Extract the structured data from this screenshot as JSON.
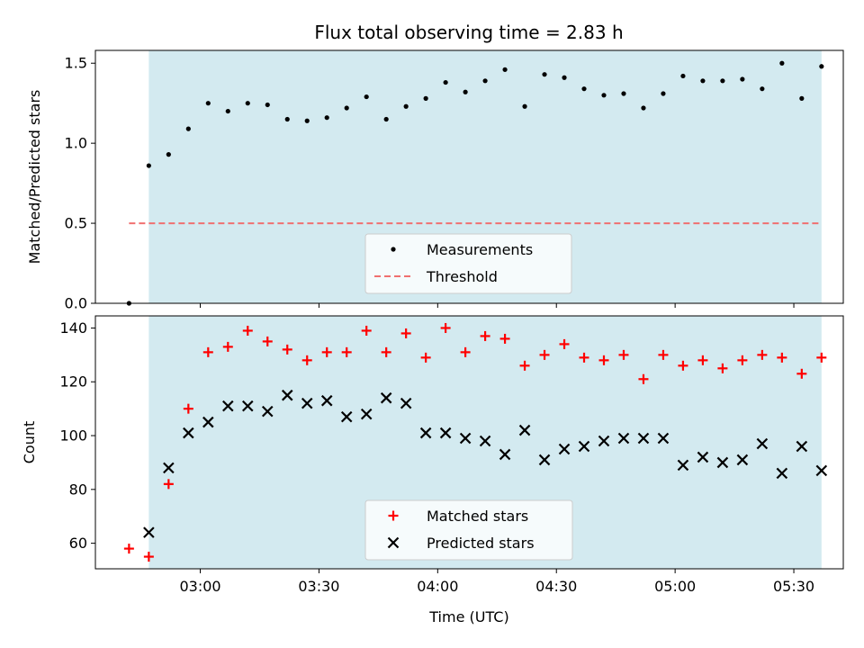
{
  "chart_data": {
    "title": "Flux total observing time = 2.83 h",
    "xlabel": "Time (UTC)",
    "x_ticks": [
      "03:00",
      "03:30",
      "04:00",
      "04:30",
      "05:00",
      "05:30"
    ],
    "x_tick_minutes": [
      180,
      210,
      240,
      270,
      300,
      330
    ],
    "observing_window": {
      "start": "02:47",
      "end": "05:37",
      "color": "#d3eaf0"
    },
    "panels": [
      {
        "type": "scatter",
        "ylabel": "Matched/Predicted stars",
        "ylim": [
          0,
          1.58
        ],
        "y_ticks": [
          0.0,
          0.5,
          1.0,
          1.5
        ],
        "y_tick_labels": [
          "0.0",
          "0.5",
          "1.0",
          "1.5"
        ],
        "legend": "lower center",
        "series": [
          {
            "name": "Measurements",
            "marker": "dot",
            "color": "#000000",
            "x": [
              "02:42",
              "02:47",
              "02:52",
              "02:57",
              "03:02",
              "03:07",
              "03:12",
              "03:17",
              "03:22",
              "03:27",
              "03:32",
              "03:37",
              "03:42",
              "03:47",
              "03:52",
              "03:57",
              "04:02",
              "04:07",
              "04:12",
              "04:17",
              "04:22",
              "04:27",
              "04:32",
              "04:37",
              "04:42",
              "04:47",
              "04:52",
              "04:57",
              "05:02",
              "05:07",
              "05:12",
              "05:17",
              "05:22",
              "05:27",
              "05:32",
              "05:37"
            ],
            "y": [
              0.0,
              0.86,
              0.93,
              1.09,
              1.25,
              1.2,
              1.25,
              1.24,
              1.15,
              1.14,
              1.16,
              1.22,
              1.29,
              1.15,
              1.23,
              1.28,
              1.38,
              1.32,
              1.39,
              1.46,
              1.23,
              1.43,
              1.41,
              1.34,
              1.3,
              1.31,
              1.22,
              1.31,
              1.42,
              1.39,
              1.39,
              1.4,
              1.34,
              1.5,
              1.28,
              1.48
            ]
          },
          {
            "name": "Threshold",
            "marker": "dashed-line",
            "color": "#f07070",
            "x": [
              "02:42",
              "05:37"
            ],
            "y": [
              0.5,
              0.5
            ]
          }
        ]
      },
      {
        "type": "scatter",
        "ylabel": "Count",
        "ylim": [
          50.5,
          144.5
        ],
        "y_ticks": [
          60,
          80,
          100,
          120,
          140
        ],
        "y_tick_labels": [
          "60",
          "80",
          "100",
          "120",
          "140"
        ],
        "legend": "lower center",
        "series": [
          {
            "name": "Matched stars",
            "marker": "plus",
            "color": "#ff0000",
            "x": [
              "02:42",
              "02:47",
              "02:52",
              "02:57",
              "03:02",
              "03:07",
              "03:12",
              "03:17",
              "03:22",
              "03:27",
              "03:32",
              "03:37",
              "03:42",
              "03:47",
              "03:52",
              "03:57",
              "04:02",
              "04:07",
              "04:12",
              "04:17",
              "04:22",
              "04:27",
              "04:32",
              "04:37",
              "04:42",
              "04:47",
              "04:52",
              "04:57",
              "05:02",
              "05:07",
              "05:12",
              "05:17",
              "05:22",
              "05:27",
              "05:32",
              "05:37"
            ],
            "y": [
              58,
              55,
              82,
              110,
              131,
              133,
              139,
              135,
              132,
              128,
              131,
              131,
              139,
              131,
              138,
              129,
              140,
              131,
              137,
              136,
              126,
              130,
              134,
              129,
              128,
              130,
              121,
              130,
              126,
              128,
              125,
              128,
              130,
              129,
              123,
              129
            ]
          },
          {
            "name": "Predicted stars",
            "marker": "x",
            "color": "#000000",
            "x": [
              "02:47",
              "02:52",
              "02:57",
              "03:02",
              "03:07",
              "03:12",
              "03:17",
              "03:22",
              "03:27",
              "03:32",
              "03:37",
              "03:42",
              "03:47",
              "03:52",
              "03:57",
              "04:02",
              "04:07",
              "04:12",
              "04:17",
              "04:22",
              "04:27",
              "04:32",
              "04:37",
              "04:42",
              "04:47",
              "04:52",
              "04:57",
              "05:02",
              "05:07",
              "05:12",
              "05:17",
              "05:22",
              "05:27",
              "05:32",
              "05:37"
            ],
            "y": [
              64,
              88,
              101,
              105,
              111,
              111,
              109,
              115,
              112,
              113,
              107,
              108,
              114,
              112,
              101,
              101,
              99,
              98,
              93,
              102,
              91,
              95,
              96,
              98,
              99,
              99,
              99,
              89,
              92,
              90,
              91,
              97,
              86,
              96,
              87
            ]
          }
        ]
      }
    ]
  }
}
